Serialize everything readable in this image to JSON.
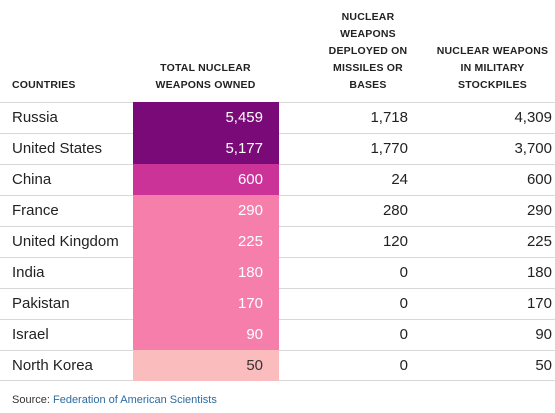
{
  "chart_data": {
    "type": "table",
    "columns": {
      "countries": "COUNTRIES",
      "total": "TOTAL NUCLEAR\nWEAPONS OWNED",
      "deployed": "NUCLEAR\nWEAPONS\nDEPLOYED ON\nMISSILES OR\nBASES",
      "stockpiles": "NUCLEAR WEAPONS\nIN MILITARY\nSTOCKPILES"
    },
    "rows": [
      {
        "country": "Russia",
        "total": "5,459",
        "total_value": 5459,
        "deployed": "1,718",
        "stockpiles": "4,309",
        "color": "#7a0a78",
        "text_color": "#ffffff"
      },
      {
        "country": "United States",
        "total": "5,177",
        "total_value": 5177,
        "deployed": "1,770",
        "stockpiles": "3,700",
        "color": "#7a0a78",
        "text_color": "#ffffff"
      },
      {
        "country": "China",
        "total": "600",
        "total_value": 600,
        "deployed": "24",
        "stockpiles": "600",
        "color": "#cc3399",
        "text_color": "#ffffff"
      },
      {
        "country": "France",
        "total": "290",
        "total_value": 290,
        "deployed": "280",
        "stockpiles": "290",
        "color": "#f57faa",
        "text_color": "#ffffff"
      },
      {
        "country": "United Kingdom",
        "total": "225",
        "total_value": 225,
        "deployed": "120",
        "stockpiles": "225",
        "color": "#f57faa",
        "text_color": "#ffffff"
      },
      {
        "country": "India",
        "total": "180",
        "total_value": 180,
        "deployed": "0",
        "stockpiles": "180",
        "color": "#f57faa",
        "text_color": "#ffffff"
      },
      {
        "country": "Pakistan",
        "total": "170",
        "total_value": 170,
        "deployed": "0",
        "stockpiles": "170",
        "color": "#f57faa",
        "text_color": "#ffffff"
      },
      {
        "country": "Israel",
        "total": "90",
        "total_value": 90,
        "deployed": "0",
        "stockpiles": "90",
        "color": "#f57faa",
        "text_color": "#ffffff"
      },
      {
        "country": "North Korea",
        "total": "50",
        "total_value": 50,
        "deployed": "0",
        "stockpiles": "50",
        "color": "#fbbcbe",
        "text_color": "#333333"
      }
    ]
  },
  "source": {
    "label": "Source:",
    "link_text": "Federation of American Scientists"
  }
}
